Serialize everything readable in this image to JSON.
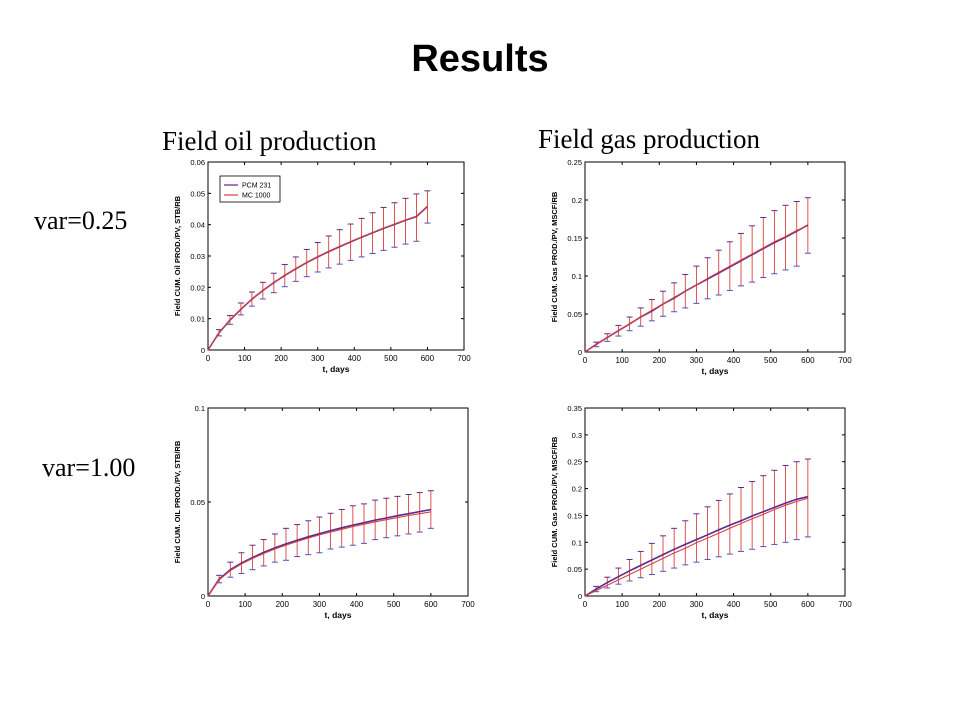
{
  "slide": {
    "title": "Results",
    "column_headers": [
      "Field oil production",
      "Field gas production"
    ],
    "row_labels": [
      "var=0.25",
      "var=1.00"
    ]
  },
  "colors": {
    "series_1": "#5a2a8c",
    "series_2": "#d94040",
    "errorbar": "#d94040",
    "errorcap_alt": "#5050c0"
  },
  "chart_data": [
    {
      "type": "line",
      "title": "",
      "xlabel": "t, days",
      "ylabel": "Field CUM. Oil PROD./PV, STB/RB",
      "xlim": [
        0,
        700
      ],
      "ylim": [
        0,
        0.06
      ],
      "xticks": [
        "0",
        "100",
        "200",
        "300",
        "400",
        "500",
        "600",
        "700"
      ],
      "yticks": [
        "0",
        "0.01",
        "0.02",
        "0.03",
        "0.04",
        "0.05",
        "0.06"
      ],
      "legend": {
        "placement": "top-left",
        "entries": [
          "PCM 231",
          "MC 1000"
        ]
      },
      "x": [
        0,
        30,
        60,
        90,
        120,
        150,
        180,
        210,
        240,
        270,
        300,
        330,
        360,
        390,
        420,
        450,
        480,
        510,
        540,
        570,
        600
      ],
      "series": [
        {
          "name": "PCM 231",
          "values": [
            0,
            0.0055,
            0.0095,
            0.013,
            0.0162,
            0.019,
            0.0215,
            0.0238,
            0.0259,
            0.0279,
            0.0297,
            0.0314,
            0.033,
            0.0345,
            0.036,
            0.0374,
            0.0388,
            0.0401,
            0.0414,
            0.0426,
            0.0458
          ]
        },
        {
          "name": "MC 1000",
          "values": [
            0,
            0.0055,
            0.0096,
            0.0131,
            0.0163,
            0.0191,
            0.0216,
            0.0239,
            0.026,
            0.028,
            0.0298,
            0.0315,
            0.0331,
            0.0346,
            0.0361,
            0.0375,
            0.0389,
            0.0402,
            0.0415,
            0.0427,
            0.0459
          ]
        }
      ],
      "error_bars": {
        "x": [
          30,
          60,
          90,
          120,
          150,
          180,
          210,
          240,
          270,
          300,
          330,
          360,
          390,
          420,
          450,
          480,
          510,
          540,
          570,
          600
        ],
        "lower": [
          0.0045,
          0.0082,
          0.0112,
          0.014,
          0.0163,
          0.0183,
          0.0202,
          0.0219,
          0.0234,
          0.0249,
          0.0262,
          0.0274,
          0.0286,
          0.0297,
          0.0308,
          0.0318,
          0.0328,
          0.0338,
          0.0347,
          0.0405
        ],
        "upper": [
          0.0065,
          0.011,
          0.015,
          0.0185,
          0.0216,
          0.0245,
          0.0273,
          0.0297,
          0.0321,
          0.0343,
          0.0364,
          0.0384,
          0.0402,
          0.042,
          0.0438,
          0.0455,
          0.047,
          0.0484,
          0.0498,
          0.0508
        ]
      }
    },
    {
      "type": "line",
      "title": "",
      "xlabel": "t, days",
      "ylabel": "Field CUM. Gas PROD./PV, MSCF/RB",
      "xlim": [
        0,
        700
      ],
      "ylim": [
        0,
        0.25
      ],
      "xticks": [
        "0",
        "100",
        "200",
        "300",
        "400",
        "500",
        "600",
        "700"
      ],
      "yticks": [
        "0",
        "0.05",
        "0.1",
        "0.15",
        "0.2",
        "0.25"
      ],
      "x": [
        0,
        30,
        60,
        90,
        120,
        150,
        180,
        210,
        240,
        270,
        300,
        330,
        360,
        390,
        420,
        450,
        480,
        510,
        540,
        570,
        600
      ],
      "series": [
        {
          "name": "",
          "values": [
            0,
            0.01,
            0.019,
            0.028,
            0.037,
            0.046,
            0.054,
            0.063,
            0.071,
            0.08,
            0.088,
            0.096,
            0.104,
            0.112,
            0.12,
            0.128,
            0.136,
            0.144,
            0.151,
            0.159,
            0.167
          ]
        },
        {
          "name": "",
          "values": [
            0,
            0.01,
            0.019,
            0.028,
            0.037,
            0.046,
            0.055,
            0.063,
            0.072,
            0.08,
            0.088,
            0.097,
            0.105,
            0.113,
            0.121,
            0.129,
            0.137,
            0.145,
            0.152,
            0.16,
            0.166
          ]
        }
      ],
      "error_bars": {
        "x": [
          30,
          60,
          90,
          120,
          150,
          180,
          210,
          240,
          270,
          300,
          330,
          360,
          390,
          420,
          450,
          480,
          510,
          540,
          570,
          600
        ],
        "lower": [
          0.007,
          0.014,
          0.021,
          0.028,
          0.034,
          0.041,
          0.047,
          0.053,
          0.058,
          0.064,
          0.07,
          0.075,
          0.081,
          0.087,
          0.092,
          0.098,
          0.103,
          0.108,
          0.113,
          0.13
        ],
        "upper": [
          0.013,
          0.024,
          0.035,
          0.046,
          0.058,
          0.069,
          0.08,
          0.091,
          0.102,
          0.113,
          0.124,
          0.134,
          0.145,
          0.156,
          0.166,
          0.177,
          0.186,
          0.193,
          0.198,
          0.203
        ]
      }
    },
    {
      "type": "line",
      "title": "",
      "xlabel": "t, days",
      "ylabel": "Field CUM. OIL PROD./PV, STB/RB",
      "xlim": [
        0,
        700
      ],
      "ylim": [
        0,
        0.1
      ],
      "xticks": [
        "0",
        "100",
        "200",
        "300",
        "400",
        "500",
        "600",
        "700"
      ],
      "yticks": [
        "0",
        "0.05",
        "0.1"
      ],
      "x": [
        0,
        30,
        60,
        90,
        120,
        150,
        180,
        210,
        240,
        270,
        300,
        330,
        360,
        390,
        420,
        450,
        480,
        510,
        540,
        570,
        600
      ],
      "series": [
        {
          "name": "",
          "values": [
            0,
            0.009,
            0.014,
            0.0175,
            0.0205,
            0.0232,
            0.0256,
            0.0277,
            0.0297,
            0.0315,
            0.0332,
            0.0348,
            0.0363,
            0.0377,
            0.039,
            0.0403,
            0.0415,
            0.0427,
            0.0438,
            0.0449,
            0.046
          ]
        },
        {
          "name": "",
          "values": [
            0,
            0.0085,
            0.0135,
            0.017,
            0.02,
            0.0226,
            0.025,
            0.0271,
            0.029,
            0.0308,
            0.0325,
            0.034,
            0.0355,
            0.0369,
            0.0382,
            0.0394,
            0.0406,
            0.0417,
            0.0428,
            0.0438,
            0.0448
          ]
        }
      ],
      "error_bars": {
        "x": [
          30,
          60,
          90,
          120,
          150,
          180,
          210,
          240,
          270,
          300,
          330,
          360,
          390,
          420,
          450,
          480,
          510,
          540,
          570,
          600
        ],
        "lower": [
          0.007,
          0.01,
          0.012,
          0.014,
          0.016,
          0.018,
          0.019,
          0.021,
          0.022,
          0.023,
          0.025,
          0.026,
          0.027,
          0.028,
          0.03,
          0.031,
          0.032,
          0.033,
          0.034,
          0.036
        ],
        "upper": [
          0.011,
          0.018,
          0.023,
          0.027,
          0.03,
          0.033,
          0.036,
          0.038,
          0.04,
          0.042,
          0.044,
          0.046,
          0.048,
          0.049,
          0.051,
          0.052,
          0.053,
          0.054,
          0.055,
          0.056
        ]
      }
    },
    {
      "type": "line",
      "title": "",
      "xlabel": "t, days",
      "ylabel": "Field CUM. Gas PROD./PV, MSCF/RB",
      "xlim": [
        0,
        700
      ],
      "ylim": [
        0,
        0.35
      ],
      "xticks": [
        "0",
        "100",
        "200",
        "300",
        "400",
        "500",
        "600",
        "700"
      ],
      "yticks": [
        "0",
        "0.05",
        "0.1",
        "0.15",
        "0.2",
        "0.25",
        "0.3",
        "0.35"
      ],
      "x": [
        0,
        30,
        60,
        90,
        120,
        150,
        180,
        210,
        240,
        270,
        300,
        330,
        360,
        390,
        420,
        450,
        480,
        510,
        540,
        570,
        600
      ],
      "series": [
        {
          "name": "",
          "values": [
            0,
            0.013,
            0.025,
            0.036,
            0.047,
            0.057,
            0.067,
            0.077,
            0.087,
            0.096,
            0.105,
            0.114,
            0.123,
            0.132,
            0.14,
            0.149,
            0.157,
            0.165,
            0.173,
            0.18,
            0.185
          ]
        },
        {
          "name": "",
          "values": [
            0,
            0.01,
            0.02,
            0.03,
            0.04,
            0.05,
            0.06,
            0.07,
            0.08,
            0.089,
            0.099,
            0.108,
            0.117,
            0.126,
            0.135,
            0.144,
            0.152,
            0.161,
            0.169,
            0.176,
            0.182
          ]
        }
      ],
      "error_bars": {
        "x": [
          30,
          60,
          90,
          120,
          150,
          180,
          210,
          240,
          270,
          300,
          330,
          360,
          390,
          420,
          450,
          480,
          510,
          540,
          570,
          600
        ],
        "lower": [
          0.008,
          0.015,
          0.022,
          0.028,
          0.034,
          0.04,
          0.046,
          0.052,
          0.058,
          0.063,
          0.068,
          0.073,
          0.078,
          0.083,
          0.087,
          0.092,
          0.096,
          0.1,
          0.105,
          0.11
        ],
        "upper": [
          0.018,
          0.035,
          0.052,
          0.068,
          0.083,
          0.098,
          0.112,
          0.126,
          0.14,
          0.153,
          0.166,
          0.178,
          0.19,
          0.202,
          0.213,
          0.224,
          0.234,
          0.243,
          0.25,
          0.255
        ]
      }
    }
  ]
}
